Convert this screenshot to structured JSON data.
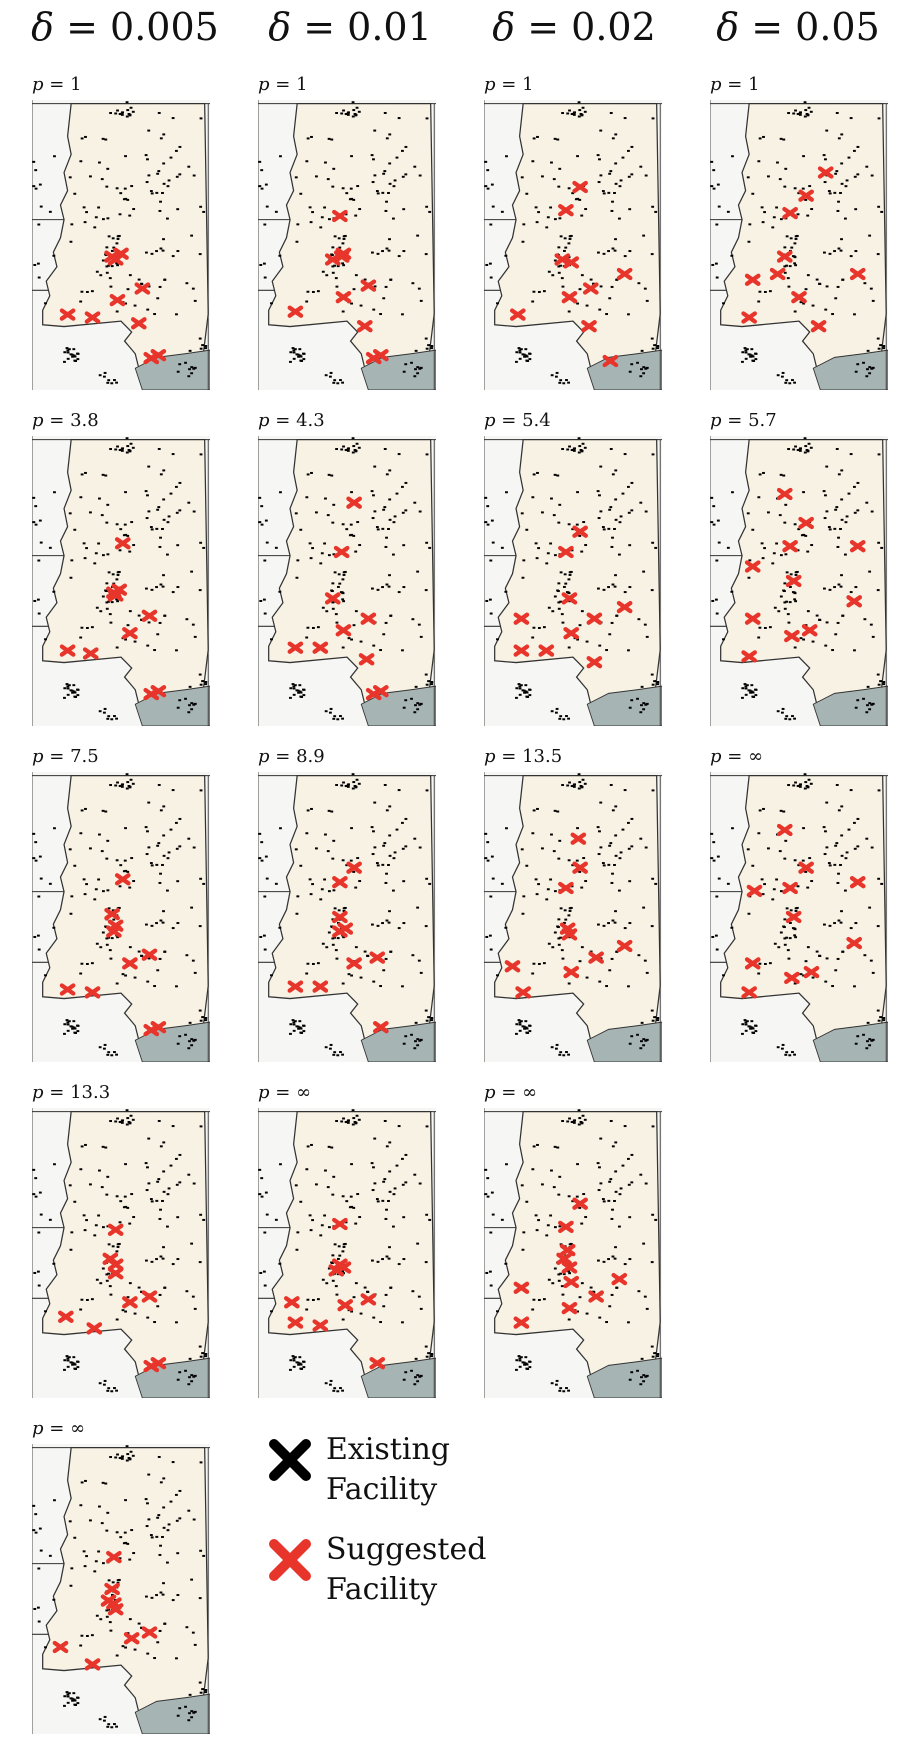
{
  "columns": [
    {
      "symbol": "δ",
      "eq": " = ",
      "value": "0.005"
    },
    {
      "symbol": "δ",
      "eq": " = ",
      "value": "0.01"
    },
    {
      "symbol": "δ",
      "eq": " = ",
      "value": "0.02"
    },
    {
      "symbol": "δ",
      "eq": " = ",
      "value": "0.05"
    }
  ],
  "panels": [
    {
      "col": 0,
      "row": 0,
      "p": "1"
    },
    {
      "col": 1,
      "row": 0,
      "p": "1"
    },
    {
      "col": 2,
      "row": 0,
      "p": "1"
    },
    {
      "col": 3,
      "row": 0,
      "p": "1"
    },
    {
      "col": 0,
      "row": 1,
      "p": "3.8"
    },
    {
      "col": 1,
      "row": 1,
      "p": "4.3"
    },
    {
      "col": 2,
      "row": 1,
      "p": "5.4"
    },
    {
      "col": 3,
      "row": 1,
      "p": "5.7"
    },
    {
      "col": 0,
      "row": 2,
      "p": "7.5"
    },
    {
      "col": 1,
      "row": 2,
      "p": "8.9"
    },
    {
      "col": 2,
      "row": 2,
      "p": "13.5"
    },
    {
      "col": 3,
      "row": 2,
      "p": "∞"
    },
    {
      "col": 0,
      "row": 3,
      "p": "13.3"
    },
    {
      "col": 1,
      "row": 3,
      "p": "∞"
    },
    {
      "col": 2,
      "row": 3,
      "p": "∞"
    },
    {
      "col": 0,
      "row": 4,
      "p": "∞"
    }
  ],
  "p_symbol": "p",
  "p_eq": " = ",
  "legend": {
    "existing": {
      "line1": "Existing",
      "line2": "Facility",
      "color": "#000000",
      "icon": "x-marker-icon"
    },
    "suggested": {
      "line1": "Suggested",
      "line2": "Facility",
      "color": "#e8352b",
      "icon": "x-marker-icon"
    }
  },
  "colors": {
    "state_fill": "#f8f2e4",
    "outside_fill": "#f6f6f4",
    "water_fill": "#a7b4b4",
    "border": "#333333",
    "existing": "#000000",
    "suggested": "#e8352b"
  }
}
